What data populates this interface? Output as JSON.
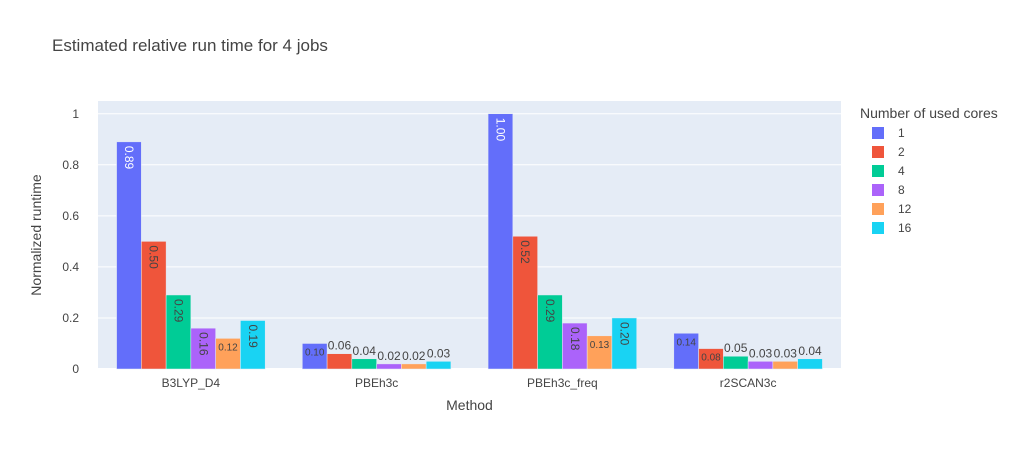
{
  "chart_data": {
    "type": "bar",
    "title": "Estimated relative run time for 4 jobs",
    "xlabel": "Method",
    "ylabel": "Normalized runtime",
    "ylim": [
      0,
      1.05
    ],
    "yticks": [
      "0",
      "0.2",
      "0.4",
      "0.6",
      "0.8",
      "1"
    ],
    "grid": true,
    "legend_position": "right",
    "legend_title": "Number of used cores",
    "categories": [
      "B3LYP_D4",
      "PBEh3c",
      "PBEh3c_freq",
      "r2SCAN3c"
    ],
    "series": [
      {
        "name": "1",
        "color": "#636efa",
        "values": [
          0.89,
          0.1,
          1.0,
          0.14
        ],
        "labels": [
          "0.89",
          "0.10",
          "1.00",
          "0.14"
        ]
      },
      {
        "name": "2",
        "color": "#EF553B",
        "values": [
          0.5,
          0.06,
          0.52,
          0.08
        ],
        "labels": [
          "0.50",
          "0.06",
          "0.52",
          "0.08"
        ]
      },
      {
        "name": "4",
        "color": "#00cc96",
        "values": [
          0.29,
          0.04,
          0.29,
          0.05
        ],
        "labels": [
          "0.29",
          "0.04",
          "0.29",
          "0.05"
        ]
      },
      {
        "name": "8",
        "color": "#ab63fa",
        "values": [
          0.16,
          0.02,
          0.18,
          0.03
        ],
        "labels": [
          "0.16",
          "0.02",
          "0.18",
          "0.03"
        ]
      },
      {
        "name": "12",
        "color": "#FFA15A",
        "values": [
          0.12,
          0.02,
          0.13,
          0.03
        ],
        "labels": [
          "0.12",
          "0.02",
          "0.13",
          "0.03"
        ]
      },
      {
        "name": "16",
        "color": "#19d3f3",
        "values": [
          0.19,
          0.03,
          0.2,
          0.04
        ],
        "labels": [
          "0.19",
          "0.03",
          "0.20",
          "0.04"
        ]
      }
    ]
  }
}
